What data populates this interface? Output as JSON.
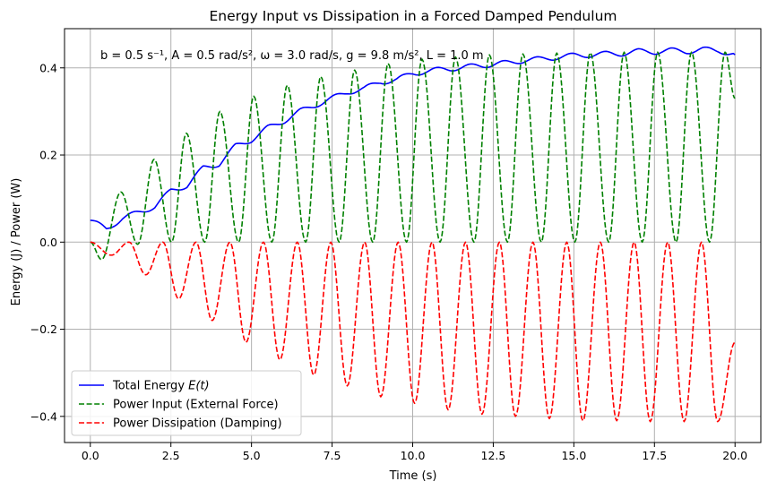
{
  "chart_data": {
    "type": "line",
    "title": "Energy Input vs Dissipation in a Forced Damped Pendulum",
    "xlabel": "Time (s)",
    "ylabel": "Energy (J) / Power (W)",
    "xlim": [
      -0.8,
      20.8
    ],
    "ylim": [
      -0.46,
      0.49
    ],
    "x_ticks": [
      0.0,
      2.5,
      5.0,
      7.5,
      10.0,
      12.5,
      15.0,
      17.5,
      20.0
    ],
    "x_tick_labels": [
      "0.0",
      "2.5",
      "5.0",
      "7.5",
      "10.0",
      "12.5",
      "15.0",
      "17.5",
      "20.0"
    ],
    "y_ticks": [
      -0.4,
      -0.2,
      0.0,
      0.2,
      0.4
    ],
    "y_tick_labels": [
      "−0.4",
      "−0.2",
      "0.0",
      "0.2",
      "0.4"
    ],
    "grid": true,
    "legend_position": "lower-left",
    "annotation": "b = 0.5 s⁻¹, A = 0.5 rad/s², ω = 3.0 rad/s, g = 9.8 m/s², L = 1.0 m",
    "period_hint": 2.094,
    "series": [
      {
        "name": "Total Energy E(t)",
        "legend_label": "Total Energy ",
        "legend_italic": "E(t)",
        "color": "#0000ff",
        "dash": "solid",
        "x": [
          0.0,
          0.5,
          1.0,
          1.5,
          2.0,
          2.5,
          3.0,
          3.5,
          4.0,
          4.5,
          5.0,
          5.5,
          6.0,
          6.5,
          7.0,
          7.5,
          8.0,
          8.5,
          9.0,
          9.5,
          10.0,
          10.5,
          11.0,
          11.5,
          12.0,
          12.5,
          13.0,
          13.5,
          14.0,
          14.5,
          15.0,
          15.5,
          16.0,
          16.5,
          17.0,
          17.5,
          18.0,
          18.5,
          19.0,
          19.5,
          20.0
        ],
        "y": [
          0.05,
          0.03,
          0.055,
          0.068,
          0.082,
          0.118,
          0.13,
          0.17,
          0.18,
          0.22,
          0.235,
          0.262,
          0.278,
          0.3,
          0.315,
          0.33,
          0.345,
          0.352,
          0.368,
          0.372,
          0.388,
          0.392,
          0.398,
          0.4,
          0.405,
          0.408,
          0.412,
          0.418,
          0.42,
          0.425,
          0.428,
          0.43,
          0.432,
          0.433,
          0.438,
          0.437,
          0.44,
          0.438,
          0.442,
          0.44,
          0.43
        ]
      },
      {
        "name": "Power Input (External Force)",
        "legend_label": "Power Input (External Force)",
        "color": "#008000",
        "dash": "dashed",
        "peaks_t": [
          0.0,
          0.95,
          1.98,
          2.98,
          4.02,
          5.07,
          6.11,
          7.15,
          8.2,
          9.24,
          10.29,
          11.33,
          12.38,
          13.42,
          14.47,
          15.51,
          16.56,
          17.6,
          18.65,
          19.69
        ],
        "peaks_v": [
          0.0,
          0.115,
          0.19,
          0.25,
          0.3,
          0.335,
          0.36,
          0.38,
          0.395,
          0.41,
          0.42,
          0.425,
          0.43,
          0.432,
          0.434,
          0.435,
          0.436,
          0.436,
          0.436,
          0.436
        ],
        "troughs_t": [
          0.35,
          1.47,
          2.52,
          3.55,
          4.6,
          5.63,
          6.68,
          7.72,
          8.76,
          9.81,
          10.85,
          11.9,
          12.94,
          13.99,
          15.03,
          16.08,
          17.12,
          18.17,
          19.21
        ],
        "troughs_v": [
          -0.04,
          -0.005,
          0.0,
          0.0,
          0.0,
          0.0,
          0.0,
          0.0,
          0.0,
          0.0,
          0.0,
          0.0,
          0.0,
          0.0,
          0.0,
          0.0,
          0.0,
          0.0,
          0.0
        ],
        "end": [
          20.0,
          0.33
        ]
      },
      {
        "name": "Power Dissipation (Damping)",
        "legend_label": "Power Dissipation (Damping)",
        "color": "#ff0000",
        "dash": "dashed",
        "troughs_t": [
          0.65,
          1.72,
          2.74,
          3.78,
          4.83,
          5.88,
          6.93,
          7.97,
          9.01,
          10.06,
          11.1,
          12.15,
          13.19,
          14.24,
          15.28,
          16.33,
          17.37,
          18.42,
          19.46
        ],
        "troughs_v": [
          -0.03,
          -0.075,
          -0.13,
          -0.18,
          -0.23,
          -0.27,
          -0.305,
          -0.33,
          -0.355,
          -0.37,
          -0.385,
          -0.395,
          -0.4,
          -0.405,
          -0.41,
          -0.41,
          -0.412,
          -0.412,
          -0.412
        ],
        "peaks_t": [
          0.0,
          1.2,
          2.25,
          3.28,
          4.33,
          5.37,
          6.42,
          7.46,
          8.51,
          9.55,
          10.6,
          11.64,
          12.69,
          13.73,
          14.78,
          15.82,
          16.87,
          17.91,
          18.96
        ],
        "peaks_v": [
          0.0,
          0.0,
          0.0,
          0.0,
          0.0,
          0.0,
          0.0,
          0.0,
          0.0,
          0.0,
          0.0,
          0.0,
          0.0,
          0.0,
          0.0,
          0.0,
          0.0,
          0.0,
          0.0
        ],
        "end": [
          20.0,
          -0.23
        ]
      }
    ]
  }
}
